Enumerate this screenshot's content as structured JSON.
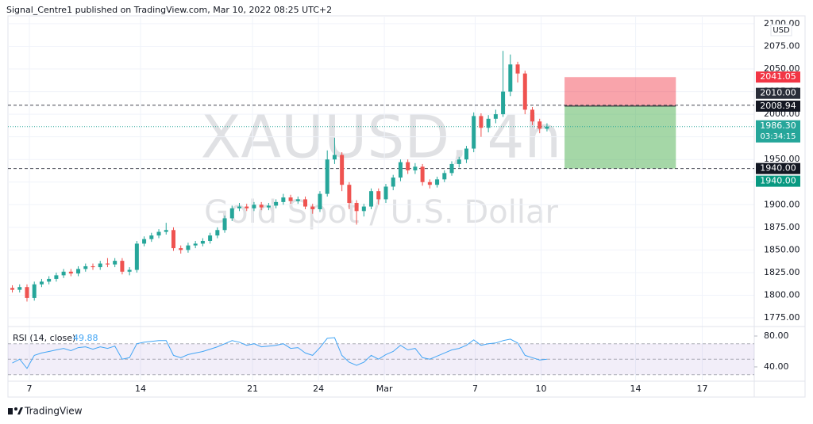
{
  "chart_data": {
    "type": "candlestick",
    "header": "Signal_Centre1 published on TradingView.com, Mar 10, 2022 08:25 UTC+2",
    "brand": "TradingView",
    "currency": "USD",
    "watermark": [
      "XAUUSD, 4h",
      "Gold Spot / U.S. Dollar"
    ],
    "up_color": "#26a69a",
    "down_color": "#ef5350",
    "grid": true,
    "x": [
      -3,
      -2,
      -1,
      0,
      1,
      2,
      3,
      4,
      5,
      6,
      7,
      8,
      9,
      10,
      11,
      12,
      13,
      14,
      15,
      16,
      17,
      18,
      19,
      20,
      21,
      22,
      23,
      24,
      25,
      26,
      27,
      28,
      29,
      30,
      31,
      32,
      33,
      34,
      35,
      36,
      37,
      38,
      39,
      40,
      41,
      42,
      43,
      44,
      45,
      46,
      47,
      48,
      49,
      50,
      51,
      52,
      53,
      54,
      55,
      56,
      57,
      58,
      59,
      60,
      61,
      62,
      63,
      64,
      65,
      66,
      67,
      68,
      69,
      70
    ],
    "open": [
      1808,
      1806,
      1809,
      1797,
      1812,
      1815,
      1818,
      1822,
      1826,
      1824,
      1829,
      1832,
      1831,
      1835,
      1834,
      1838,
      1826,
      1828,
      1857,
      1862,
      1866,
      1870,
      1872,
      1852,
      1850,
      1855,
      1857,
      1860,
      1866,
      1872,
      1885,
      1896,
      1898,
      1896,
      1900,
      1897,
      1899,
      1903,
      1908,
      1904,
      1906,
      1898,
      1895,
      1912,
      1950,
      1955,
      1922,
      1902,
      1893,
      1898,
      1915,
      1906,
      1920,
      1930,
      1947,
      1938,
      1942,
      1925,
      1922,
      1928,
      1935,
      1945,
      1950,
      1962,
      1998,
      1985,
      1995,
      2000,
      2025,
      2055,
      2045,
      2005,
      1992,
      1984
    ],
    "high": [
      1811,
      1812,
      1812,
      1815,
      1818,
      1821,
      1825,
      1829,
      1829,
      1832,
      1835,
      1835,
      1838,
      1841,
      1841,
      1841,
      1831,
      1860,
      1865,
      1869,
      1873,
      1880,
      1875,
      1855,
      1858,
      1860,
      1863,
      1869,
      1875,
      1888,
      1899,
      1902,
      1901,
      1903,
      1903,
      1902,
      1906,
      1912,
      1911,
      1909,
      1909,
      1901,
      1915,
      1960,
      1974,
      1958,
      1925,
      1905,
      1901,
      1918,
      1918,
      1923,
      1933,
      1950,
      1950,
      1946,
      1945,
      1928,
      1931,
      1938,
      1948,
      1953,
      1965,
      2002,
      2001,
      1999,
      2005,
      2070,
      2066,
      2058,
      2048,
      2008,
      1995,
      1990
    ],
    "low": [
      1803,
      1803,
      1793,
      1794,
      1809,
      1812,
      1815,
      1819,
      1821,
      1821,
      1826,
      1828,
      1828,
      1831,
      1831,
      1823,
      1822,
      1825,
      1854,
      1859,
      1863,
      1867,
      1849,
      1846,
      1847,
      1852,
      1854,
      1857,
      1863,
      1869,
      1882,
      1893,
      1893,
      1893,
      1894,
      1894,
      1896,
      1900,
      1901,
      1901,
      1895,
      1890,
      1892,
      1909,
      1945,
      1915,
      1895,
      1878,
      1887,
      1895,
      1900,
      1902,
      1916,
      1926,
      1934,
      1934,
      1921,
      1918,
      1919,
      1925,
      1932,
      1941,
      1946,
      1958,
      1975,
      1980,
      1990,
      1997,
      2020,
      2035,
      2000,
      1988,
      1979,
      1981
    ],
    "close": [
      1806,
      1809,
      1797,
      1812,
      1815,
      1818,
      1822,
      1826,
      1824,
      1829,
      1832,
      1831,
      1835,
      1834,
      1838,
      1826,
      1828,
      1857,
      1862,
      1866,
      1870,
      1872,
      1852,
      1850,
      1855,
      1857,
      1860,
      1866,
      1872,
      1885,
      1896,
      1898,
      1896,
      1900,
      1897,
      1899,
      1903,
      1908,
      1904,
      1906,
      1898,
      1895,
      1912,
      1950,
      1955,
      1922,
      1902,
      1893,
      1898,
      1915,
      1906,
      1920,
      1930,
      1947,
      1938,
      1942,
      1925,
      1922,
      1928,
      1935,
      1945,
      1950,
      1962,
      1998,
      1985,
      1995,
      2000,
      2025,
      2055,
      2045,
      2005,
      1992,
      1984,
      1986.3
    ],
    "xlim": [
      -3.6,
      98.3
    ],
    "xticks": [
      {
        "value": -0.67,
        "label": "7"
      },
      {
        "value": 14.5,
        "label": "14"
      },
      {
        "value": 29.8,
        "label": "21"
      },
      {
        "value": 38.8,
        "label": "24"
      },
      {
        "value": 47.8,
        "label": "Mar"
      },
      {
        "value": 60.2,
        "label": "7"
      },
      {
        "value": 69.2,
        "label": "10"
      },
      {
        "value": 82.1,
        "label": "14"
      },
      {
        "value": 91.2,
        "label": "17"
      }
    ],
    "ylim": [
      1765.4,
      2108.7
    ],
    "yticks": [
      {
        "value": 1775,
        "label": "1775.00"
      },
      {
        "value": 1800,
        "label": "1800.00"
      },
      {
        "value": 1825,
        "label": "1825.00"
      },
      {
        "value": 1850,
        "label": "1850.00"
      },
      {
        "value": 1875,
        "label": "1875.00"
      },
      {
        "value": 1900,
        "label": "1900.00"
      },
      {
        "value": 1925,
        "label": "1925.00"
      },
      {
        "value": 1950,
        "label": "1950.00"
      },
      {
        "value": 1975,
        "label": "1975.00"
      },
      {
        "value": 2000,
        "label": "2000.00"
      },
      {
        "value": 2025,
        "label": "2025.00"
      },
      {
        "value": 2050,
        "label": "2050.00"
      },
      {
        "value": 2075,
        "label": "2075.00"
      },
      {
        "value": 2100,
        "label": "2100.00"
      }
    ],
    "hlines": [
      {
        "value": 2010,
        "label": "2010.00"
      },
      {
        "value": 1940,
        "label": "1940.00"
      }
    ],
    "position": {
      "start": 72.4,
      "end": 87.6,
      "stop": 2041.05,
      "entry": 2008.94,
      "target": {
        "value": 1940,
        "label": "1940.00"
      }
    },
    "last_price": {
      "value": 1986.3,
      "label": "1986.30",
      "countdown": "03:34:15"
    },
    "rsi": {
      "name": "RSI (14, close)",
      "color": "#42a5f5",
      "values": [
        45,
        50,
        38,
        55,
        58,
        60,
        62,
        64,
        61,
        65,
        66,
        63,
        66,
        64,
        67,
        50,
        52,
        70,
        72,
        73,
        74,
        74,
        55,
        52,
        56,
        58,
        60,
        63,
        66,
        70,
        74,
        72,
        68,
        70,
        66,
        67,
        68,
        70,
        64,
        65,
        58,
        55,
        65,
        77,
        78,
        55,
        46,
        42,
        46,
        55,
        50,
        56,
        60,
        68,
        62,
        64,
        52,
        50,
        54,
        58,
        62,
        64,
        68,
        75,
        68,
        70,
        71,
        74,
        76,
        71,
        55,
        52,
        49,
        49.88
      ],
      "ylim": [
        22.5,
        91.3
      ],
      "yticks": [
        {
          "value": 80,
          "label": "80.00"
        },
        {
          "value": 40,
          "label": "40.00"
        }
      ],
      "band": [
        30,
        70
      ],
      "levels": [
        70,
        50,
        30
      ]
    }
  }
}
